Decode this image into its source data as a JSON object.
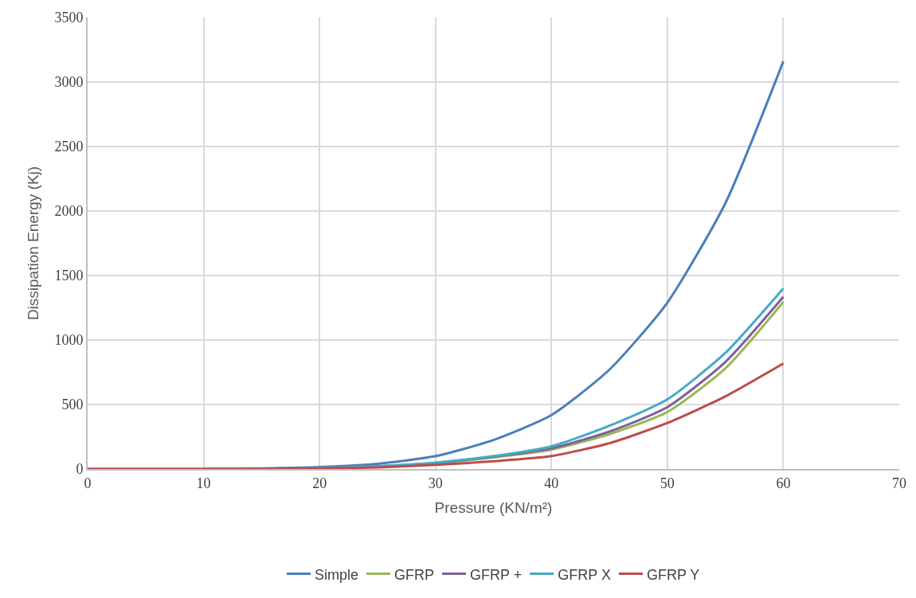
{
  "chart_data": {
    "type": "line",
    "xlabel": "Pressure (KN/m²)",
    "ylabel": "Dissipation Energy (Kj)",
    "x": [
      0,
      5,
      10,
      15,
      20,
      25,
      30,
      35,
      40,
      45,
      50,
      55,
      60
    ],
    "series": [
      {
        "name": "Simple",
        "color": "#4a7ebb",
        "values": [
          null,
          null,
          1,
          5,
          15,
          40,
          100,
          225,
          418,
          770,
          1290,
          2060,
          3160
        ]
      },
      {
        "name": "GFRP",
        "color": "#98b954",
        "values": [
          null,
          null,
          null,
          null,
          null,
          20,
          45,
          90,
          150,
          270,
          442,
          780,
          1295
        ]
      },
      {
        "name": "GFRP +",
        "color": "#7d60a0",
        "values": [
          0,
          0,
          0,
          2,
          7,
          20,
          47,
          95,
          160,
          290,
          480,
          830,
          1335
        ]
      },
      {
        "name": "GFRP X",
        "color": "#46aac5",
        "values": [
          null,
          null,
          0,
          2,
          8,
          22,
          50,
          100,
          176,
          335,
          540,
          900,
          1400
        ]
      },
      {
        "name": "GFRP Y",
        "color": "#be4b48",
        "values": [
          0,
          0,
          0,
          1,
          4,
          12,
          32,
          60,
          100,
          200,
          357,
          563,
          818
        ]
      }
    ],
    "xlim": [
      0,
      70
    ],
    "xticks": [
      0,
      10,
      20,
      30,
      40,
      50,
      60,
      70
    ],
    "ylim": [
      0,
      3500
    ],
    "yticks": [
      0,
      500,
      1000,
      1500,
      2000,
      2500,
      3000,
      3500
    ],
    "grid": true,
    "legend": "bottom",
    "marker": "none",
    "line_style": "solid"
  }
}
